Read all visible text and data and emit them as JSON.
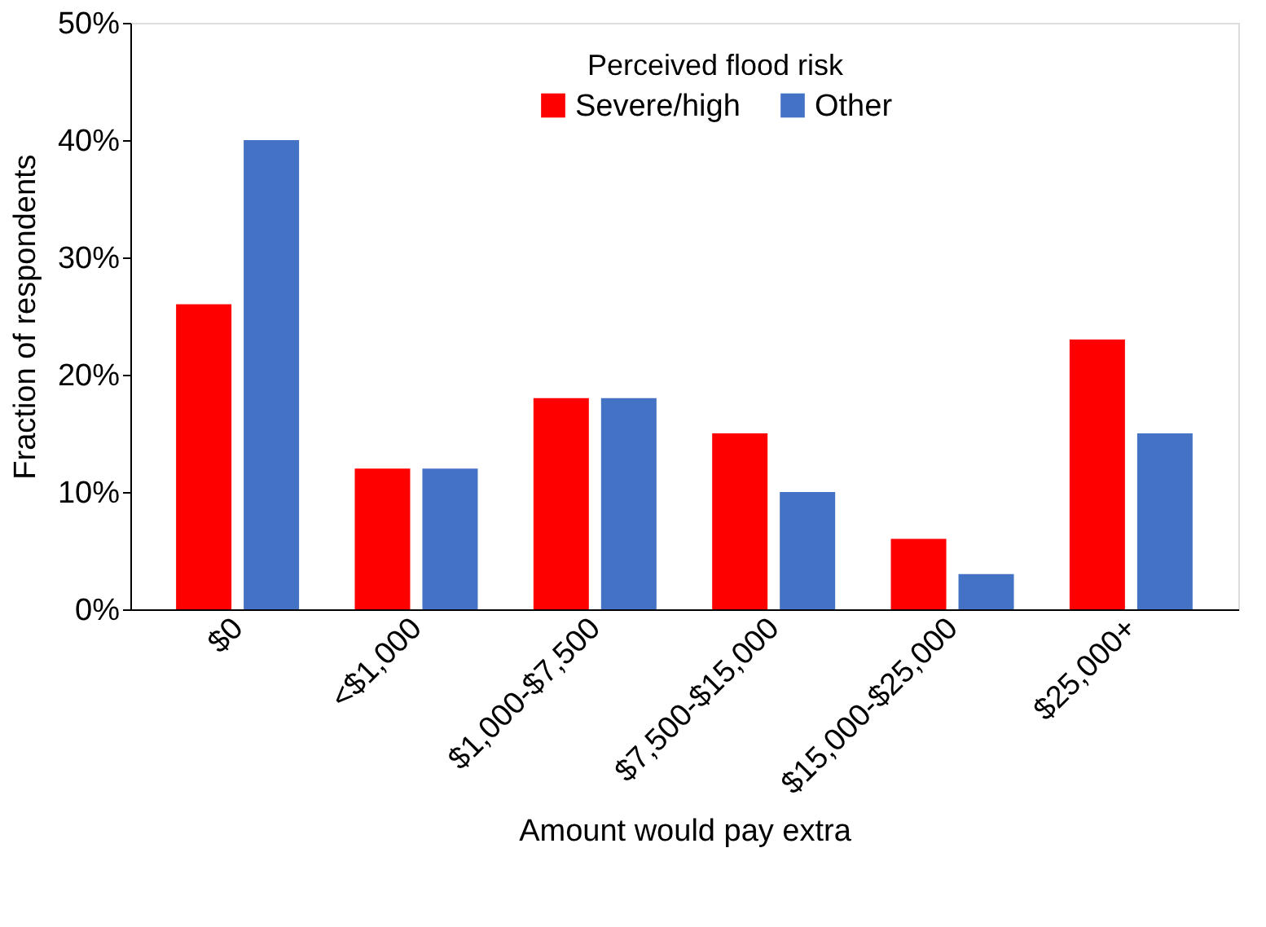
{
  "chart_data": {
    "type": "bar",
    "xlabel": "Amount would pay extra",
    "ylabel": "Fraction of respondents",
    "legend_title": "Perceived flood risk",
    "legend": "top",
    "grid": false,
    "categories": [
      "$0",
      "<$1,000",
      "$1,000-$7,500",
      "$7,500-$15,000",
      "$15,000-$25,000",
      "$25,000+"
    ],
    "series": [
      {
        "name": "Severe/high",
        "color": "#ff0000",
        "values": [
          26,
          12,
          18,
          15,
          6,
          23
        ]
      },
      {
        "name": "Other",
        "color": "#4472c4",
        "values": [
          40,
          12,
          18,
          10,
          3,
          15
        ]
      }
    ],
    "ylim": [
      0,
      50
    ],
    "yticks": [
      {
        "value": 0,
        "label": "0%"
      },
      {
        "value": 10,
        "label": "10%"
      },
      {
        "value": 20,
        "label": "20%"
      },
      {
        "value": 30,
        "label": "30%"
      },
      {
        "value": 40,
        "label": "40%"
      },
      {
        "value": 50,
        "label": "50%"
      }
    ]
  }
}
